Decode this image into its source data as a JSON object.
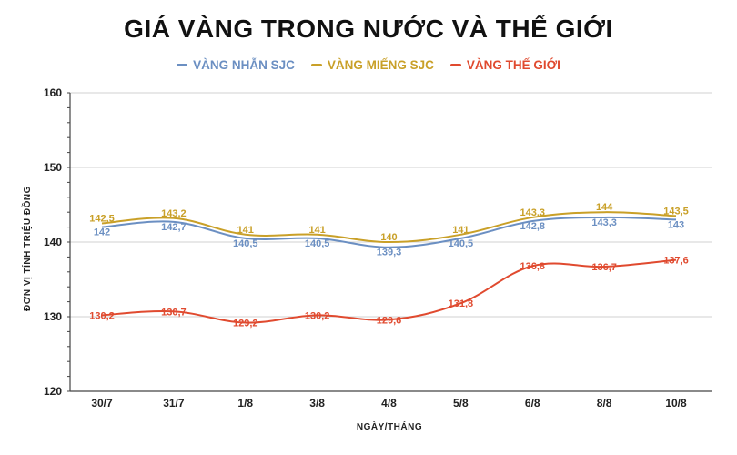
{
  "chart_data": {
    "type": "line",
    "title": "GIÁ VÀNG TRONG NƯỚC VÀ THẾ GIỚI",
    "xlabel": "NGÀY/THÁNG",
    "ylabel": "ĐƠN VỊ TÍNH TRIỆU ĐỒNG",
    "categories": [
      "30/7",
      "31/7",
      "1/8",
      "3/8",
      "4/8",
      "5/8",
      "6/8",
      "8/8",
      "10/8"
    ],
    "yticks": [
      "120",
      "130",
      "140",
      "150",
      "160"
    ],
    "ylim": [
      120,
      160
    ],
    "grid": true,
    "legend_position": "top-center",
    "series": [
      {
        "name": "VÀNG NHẪN SJC",
        "color": "#6b8fc2",
        "values": [
          142,
          142.7,
          140.5,
          140.5,
          139.3,
          140.5,
          142.8,
          143.3,
          143
        ],
        "labels": [
          "142",
          "142,7",
          "140,5",
          "140,5",
          "139,3",
          "140,5",
          "142,8",
          "143,3",
          "143"
        ]
      },
      {
        "name": "VÀNG MIẾNG SJC",
        "color": "#c9a028",
        "values": [
          142.5,
          143.2,
          141,
          141,
          140,
          141,
          143.3,
          144,
          143.5
        ],
        "labels": [
          "142,5",
          "143,2",
          "141",
          "141",
          "140",
          "141",
          "143,3",
          "144",
          "143,5"
        ]
      },
      {
        "name": "VÀNG THẾ GIỚI",
        "color": "#e04a2f",
        "values": [
          130.2,
          130.7,
          129.2,
          130.2,
          129.6,
          131.8,
          136.8,
          136.7,
          137.6
        ],
        "labels": [
          "130,2",
          "130,7",
          "129,2",
          "130,2",
          "129,6",
          "131,8",
          "136,8",
          "136,7",
          "137,6"
        ]
      }
    ]
  }
}
